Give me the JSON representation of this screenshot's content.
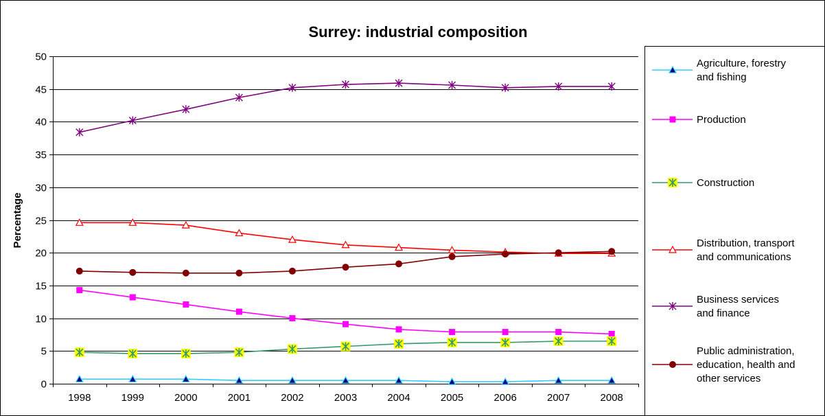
{
  "chart_data": {
    "type": "line",
    "title": "Surrey: industrial composition",
    "xlabel": "",
    "ylabel": "Percentage",
    "ylim": [
      0,
      50
    ],
    "yticks": [
      0,
      5,
      10,
      15,
      20,
      25,
      30,
      35,
      40,
      45,
      50
    ],
    "grid": true,
    "legend_position": "right",
    "categories": [
      "1998",
      "1999",
      "2000",
      "2001",
      "2002",
      "2003",
      "2004",
      "2005",
      "2006",
      "2007",
      "2008"
    ],
    "series": [
      {
        "name": "Agriculture, forestry and fishing",
        "name_lines": [
          "Agriculture, forestry",
          "and fishing"
        ],
        "color": "#33CCFF",
        "marker": "triangle-filled",
        "marker_fill": "#000080",
        "values": [
          0.7,
          0.7,
          0.7,
          0.5,
          0.5,
          0.5,
          0.5,
          0.3,
          0.3,
          0.5,
          0.5
        ]
      },
      {
        "name": "Production",
        "name_lines": [
          "Production"
        ],
        "color": "#FF00FF",
        "marker": "square",
        "marker_fill": "#FF00FF",
        "values": [
          14.3,
          13.2,
          12.1,
          11.0,
          10.0,
          9.1,
          8.3,
          7.9,
          7.9,
          7.9,
          7.6
        ]
      },
      {
        "name": "Construction",
        "name_lines": [
          "Construction"
        ],
        "color": "#339966",
        "marker": "star-box",
        "marker_fill": "#FFFF00",
        "values": [
          4.8,
          4.6,
          4.6,
          4.8,
          5.3,
          5.7,
          6.1,
          6.3,
          6.3,
          6.5,
          6.5
        ]
      },
      {
        "name": "Distribution, transport and communications",
        "name_lines": [
          "Distribution, transport",
          "and communications"
        ],
        "color": "#FF0000",
        "marker": "triangle-open",
        "marker_fill": "#FFFFFF",
        "values": [
          24.6,
          24.6,
          24.2,
          23.0,
          22.0,
          21.2,
          20.8,
          20.4,
          20.1,
          19.9,
          19.9
        ]
      },
      {
        "name": "Business services and finance",
        "name_lines": [
          "Business services",
          "and finance"
        ],
        "color": "#800080",
        "marker": "asterisk",
        "marker_fill": "#800080",
        "values": [
          38.4,
          40.2,
          41.9,
          43.7,
          45.2,
          45.7,
          45.9,
          45.6,
          45.2,
          45.4,
          45.4
        ]
      },
      {
        "name": "Public administration, education, health and other services",
        "name_lines": [
          "Public administration,",
          "education, health and",
          "other services"
        ],
        "color": "#800000",
        "marker": "circle",
        "marker_fill": "#800000",
        "values": [
          17.2,
          17.0,
          16.9,
          16.9,
          17.2,
          17.8,
          18.3,
          19.4,
          19.8,
          20.0,
          20.2
        ]
      }
    ]
  }
}
